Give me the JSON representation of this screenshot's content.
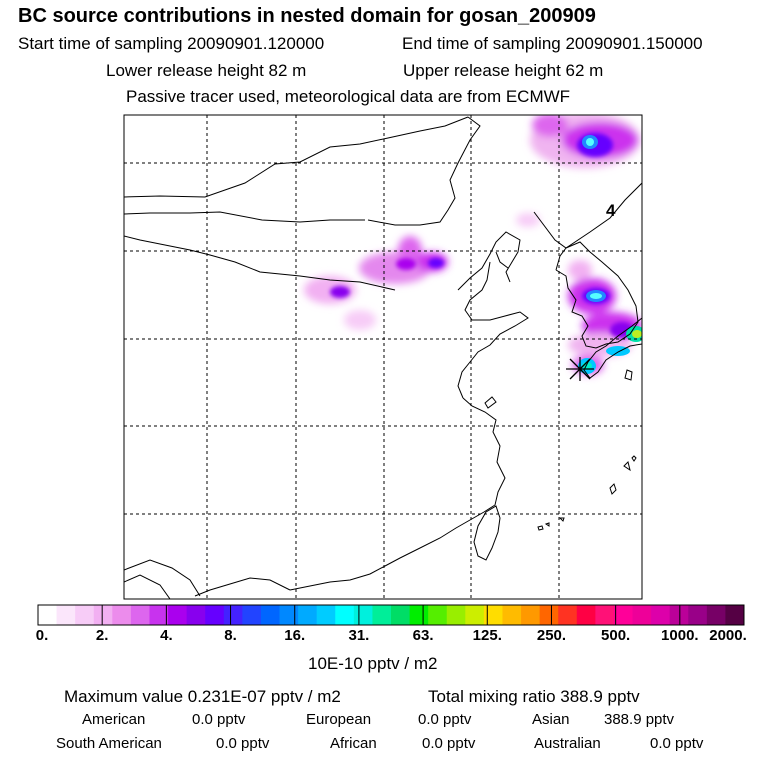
{
  "header": {
    "title": "BC  source contributions in nested domain for gosan_200909",
    "start_label": "Start time of sampling 20090901.120000",
    "end_label": "End time of sampling 20090901.150000",
    "lower_label": "Lower release height   82 m",
    "upper_label": "Upper release height   62 m",
    "info": "Passive tracer used, meteorological data are from ECMWF"
  },
  "map": {
    "region_label": "4",
    "receptor_marker": "star"
  },
  "colorbar": {
    "ticks": [
      "0.",
      "2.",
      "4.",
      "8.",
      "16.",
      "31.",
      "63.",
      "125.",
      "250.",
      "500.",
      "1000.",
      "2000."
    ],
    "units": "10E-10 pptv / m2",
    "colors": [
      "#ffffff",
      "#fbe6fb",
      "#f7ccf7",
      "#f2b0f2",
      "#ec8cec",
      "#dd66ee",
      "#c833ee",
      "#aa00ee",
      "#8800ee",
      "#6600ff",
      "#4422ff",
      "#2244ff",
      "#0066ff",
      "#0088ff",
      "#00aaff",
      "#00ccff",
      "#00ffff",
      "#00f0dd",
      "#00ee99",
      "#00dd66",
      "#00ee00",
      "#55ee00",
      "#99ee00",
      "#ccee00",
      "#ffdd00",
      "#ffbb00",
      "#ff9900",
      "#ff6600",
      "#ff3322",
      "#ff0044",
      "#ff1177",
      "#ff0099",
      "#ee0099",
      "#dd00aa",
      "#bb0099",
      "#990088",
      "#770066",
      "#550044"
    ]
  },
  "stats": {
    "max_label": "Maximum value  0.231E-07 pptv / m2",
    "total_label": "Total mixing ratio      388.9 pptv",
    "american_label": "American",
    "american_value": "0.0 pptv",
    "european_label": "European",
    "european_value": "0.0 pptv",
    "asian_label": "Asian",
    "asian_value": "388.9 pptv",
    "south_american_label": "South American",
    "south_american_value": "0.0 pptv",
    "african_label": "African",
    "african_value": "0.0 pptv",
    "australian_label": "Australian",
    "australian_value": "0.0 pptv"
  }
}
